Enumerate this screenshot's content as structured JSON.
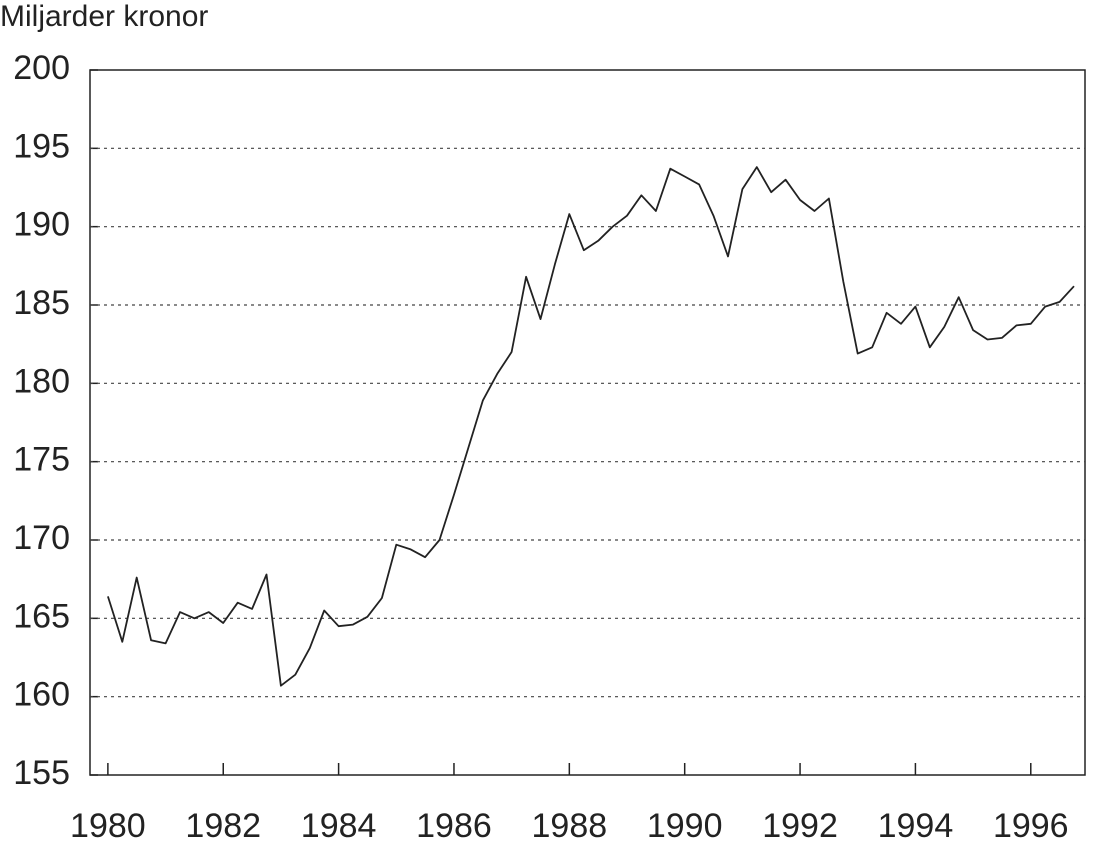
{
  "chart_data": {
    "type": "line",
    "ylabel": "Miljarder kronor",
    "x": [
      1980,
      1980.25,
      1980.5,
      1980.75,
      1981,
      1981.25,
      1981.5,
      1981.75,
      1982,
      1982.25,
      1982.5,
      1982.75,
      1983,
      1983.25,
      1983.5,
      1983.75,
      1984,
      1984.25,
      1984.5,
      1984.75,
      1985,
      1985.25,
      1985.5,
      1985.75,
      1986,
      1986.25,
      1986.5,
      1986.75,
      1987,
      1987.25,
      1987.5,
      1987.75,
      1988,
      1988.25,
      1988.5,
      1988.75,
      1989,
      1989.25,
      1989.5,
      1989.75,
      1990,
      1990.25,
      1990.5,
      1990.75,
      1991,
      1991.25,
      1991.5,
      1991.75,
      1992,
      1992.25,
      1992.5,
      1992.75,
      1993,
      1993.25,
      1993.5,
      1993.75,
      1994,
      1994.25,
      1994.5,
      1994.75,
      1995,
      1995.25,
      1995.5,
      1995.75,
      1996,
      1996.25,
      1996.5,
      1996.75
    ],
    "values": [
      166.4,
      163.5,
      167.6,
      163.6,
      163.4,
      165.4,
      165.0,
      165.4,
      164.7,
      166.0,
      165.6,
      167.8,
      160.7,
      161.4,
      163.1,
      165.5,
      164.5,
      164.6,
      165.1,
      166.3,
      169.7,
      169.4,
      168.9,
      170.0,
      172.9,
      175.9,
      178.9,
      180.6,
      182.0,
      186.8,
      184.1,
      187.6,
      190.8,
      188.5,
      189.1,
      190.0,
      190.7,
      192.0,
      191.0,
      193.7,
      193.2,
      192.7,
      190.7,
      188.1,
      192.4,
      193.8,
      192.2,
      193.0,
      191.7,
      191.0,
      191.8,
      186.5,
      181.9,
      182.3,
      184.5,
      183.8,
      184.9,
      182.3,
      183.6,
      185.5,
      183.4,
      182.8,
      182.9,
      183.7,
      183.8,
      184.9,
      185.2,
      186.2
    ],
    "color": "#222222",
    "xlim": [
      1979.69,
      1996.94
    ],
    "xticks": [
      1980,
      1982,
      1984,
      1986,
      1988,
      1990,
      1992,
      1994,
      1996
    ],
    "ylim": [
      155,
      200
    ],
    "yticks": [
      155,
      160,
      165,
      170,
      175,
      180,
      185,
      190,
      195,
      200
    ],
    "grid": true
  }
}
